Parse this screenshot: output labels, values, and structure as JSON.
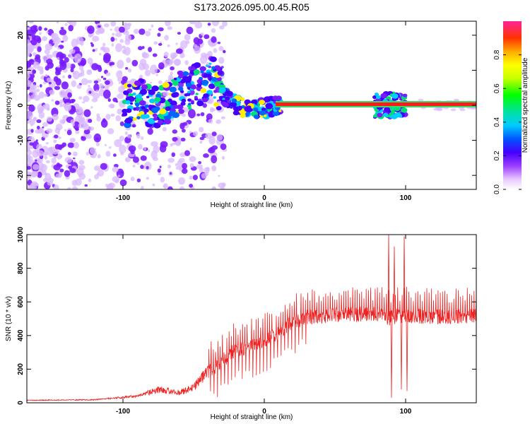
{
  "title": "S173.2026.095.00.45.R05",
  "colors": {
    "snr_line": "#ee2222",
    "ridge": "#ff1a1a",
    "frame": "#000000"
  },
  "chart_data": [
    {
      "type": "heatmap",
      "title": "S173.2026.095.00.45.R05",
      "xlabel": "Height of straight line (km)",
      "ylabel": "Frequency (Hz)",
      "xlim": [
        -168,
        150
      ],
      "ylim": [
        -24,
        24
      ],
      "xticks": [
        -100,
        0,
        100
      ],
      "yticks": [
        -20,
        -10,
        0,
        10,
        20
      ],
      "xtick_labels": [
        "-100",
        "0",
        "100"
      ],
      "ytick_labels": [
        "-20",
        "-10",
        "0",
        "10",
        "20"
      ],
      "colorbar": {
        "label": "Normalized spectral amplitude",
        "range": [
          0,
          1
        ],
        "ticks": [
          0.0,
          0.2,
          0.4,
          0.6,
          0.8
        ],
        "tick_labels": [
          "0.0",
          "0.2",
          "0.4",
          "0.6",
          "0.8"
        ]
      },
      "ridge": {
        "description_points": [
          {
            "x": -90,
            "y": 2
          },
          {
            "x": -75,
            "y": -1
          },
          {
            "x": -60,
            "y": 4
          },
          {
            "x": -45,
            "y": 6
          },
          {
            "x": -38,
            "y": 9
          },
          {
            "x": -30,
            "y": 3
          },
          {
            "x": -20,
            "y": 0
          },
          {
            "x": -10,
            "y": -1
          },
          {
            "x": 0,
            "y": -1
          },
          {
            "x": 10,
            "y": 0
          },
          {
            "x": 150,
            "y": 0
          }
        ]
      }
    },
    {
      "type": "line",
      "xlabel": "Height of straight line (km)",
      "ylabel": "SNR (10 * v/v)",
      "xlim": [
        -168,
        150
      ],
      "ylim": [
        0,
        1000
      ],
      "xticks": [
        -100,
        0,
        100
      ],
      "yticks": [
        0,
        200,
        400,
        600,
        800,
        1000
      ],
      "xtick_labels": [
        "-100",
        "0",
        "100"
      ],
      "ytick_labels": [
        "0",
        "200",
        "400",
        "600",
        "800",
        "1000"
      ],
      "series": [
        {
          "name": "SNR",
          "envelope": [
            {
              "x": -168,
              "y": 15
            },
            {
              "x": -120,
              "y": 18
            },
            {
              "x": -90,
              "y": 40
            },
            {
              "x": -75,
              "y": 80
            },
            {
              "x": -60,
              "y": 60
            },
            {
              "x": -50,
              "y": 90
            },
            {
              "x": -40,
              "y": 180
            },
            {
              "x": -30,
              "y": 250
            },
            {
              "x": -20,
              "y": 320
            },
            {
              "x": -10,
              "y": 330
            },
            {
              "x": 0,
              "y": 360
            },
            {
              "x": 10,
              "y": 420
            },
            {
              "x": 20,
              "y": 480
            },
            {
              "x": 30,
              "y": 510
            },
            {
              "x": 50,
              "y": 520
            },
            {
              "x": 80,
              "y": 530
            },
            {
              "x": 88,
              "y": 500
            },
            {
              "x": 95,
              "y": 520
            },
            {
              "x": 102,
              "y": 520
            },
            {
              "x": 120,
              "y": 510
            },
            {
              "x": 150,
              "y": 520
            }
          ],
          "spikes": [
            {
              "x": 88,
              "y": 1000
            },
            {
              "x": 90,
              "y": 30
            },
            {
              "x": 92,
              "y": 930
            },
            {
              "x": 97,
              "y": 80
            },
            {
              "x": 99,
              "y": 990
            },
            {
              "x": 101,
              "y": 70
            }
          ]
        }
      ]
    }
  ]
}
